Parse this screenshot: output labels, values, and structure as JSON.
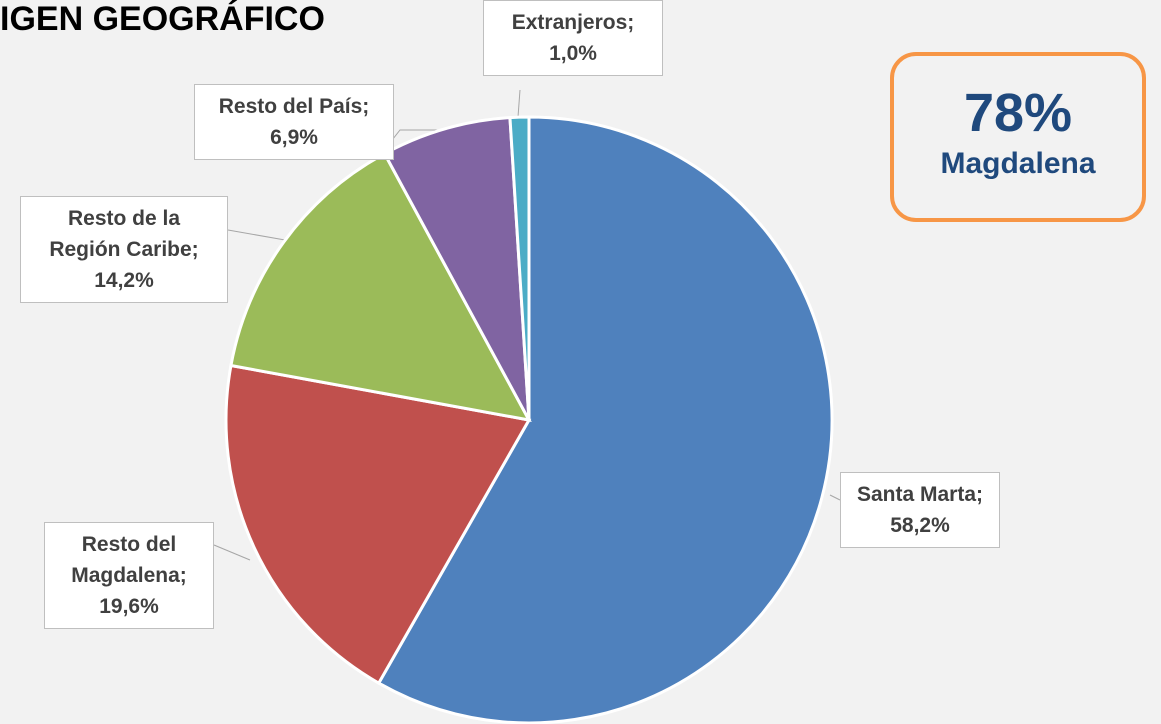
{
  "chart_data": {
    "type": "pie",
    "title": "IGEN GEOGRÁFICO",
    "categories": [
      "Santa Marta;",
      "Resto del Magdalena;",
      "Resto de la Región Caribe;",
      "Resto del País;",
      "Extranjeros;"
    ],
    "values": [
      58.2,
      19.6,
      14.2,
      6.9,
      1.0
    ],
    "value_labels": [
      "58,2%",
      "19,6%",
      "14,2%",
      "6,9%",
      "1,0%"
    ],
    "colors": [
      "#4f81bd",
      "#c0504d",
      "#9bbb59",
      "#8064a2",
      "#4bacc6"
    ],
    "annotation": {
      "label": "78%",
      "text": "Magdalena"
    }
  }
}
